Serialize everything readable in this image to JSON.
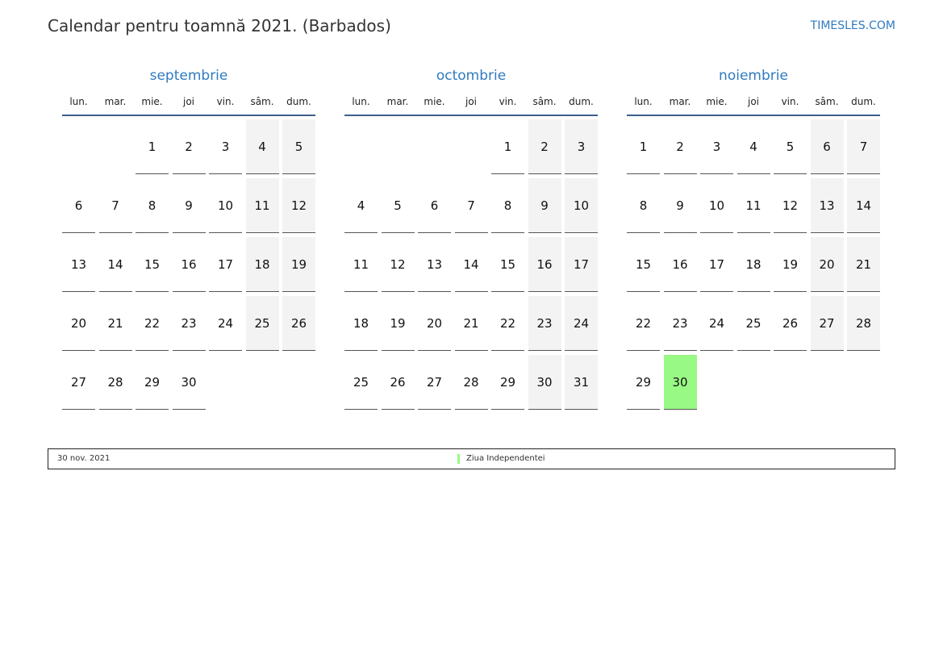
{
  "header": {
    "title": "Calendar pentru toamnă 2021. (Barbados)",
    "brand": "TIMESLES.COM"
  },
  "weekdays": [
    "lun.",
    "mar.",
    "mie.",
    "joi",
    "vin.",
    "sâm.",
    "dum."
  ],
  "colors": {
    "accent": "#2f7bbf",
    "weekend": "#f3f3f3",
    "holiday": "#99f985"
  },
  "months": [
    {
      "name": "septembrie",
      "weeks": [
        [
          null,
          null,
          1,
          2,
          3,
          4,
          5
        ],
        [
          6,
          7,
          8,
          9,
          10,
          11,
          12
        ],
        [
          13,
          14,
          15,
          16,
          17,
          18,
          19
        ],
        [
          20,
          21,
          22,
          23,
          24,
          25,
          26
        ],
        [
          27,
          28,
          29,
          30,
          null,
          null,
          null
        ]
      ],
      "holidays": []
    },
    {
      "name": "octombrie",
      "weeks": [
        [
          null,
          null,
          null,
          null,
          1,
          2,
          3
        ],
        [
          4,
          5,
          6,
          7,
          8,
          9,
          10
        ],
        [
          11,
          12,
          13,
          14,
          15,
          16,
          17
        ],
        [
          18,
          19,
          20,
          21,
          22,
          23,
          24
        ],
        [
          25,
          26,
          27,
          28,
          29,
          30,
          31
        ]
      ],
      "holidays": []
    },
    {
      "name": "noiembrie",
      "weeks": [
        [
          1,
          2,
          3,
          4,
          5,
          6,
          7
        ],
        [
          8,
          9,
          10,
          11,
          12,
          13,
          14
        ],
        [
          15,
          16,
          17,
          18,
          19,
          20,
          21
        ],
        [
          22,
          23,
          24,
          25,
          26,
          27,
          28
        ],
        [
          29,
          30,
          null,
          null,
          null,
          null,
          null
        ]
      ],
      "holidays": [
        30
      ]
    }
  ],
  "legend": [
    {
      "date": "30 nov. 2021",
      "name": "Ziua Independentei"
    }
  ]
}
